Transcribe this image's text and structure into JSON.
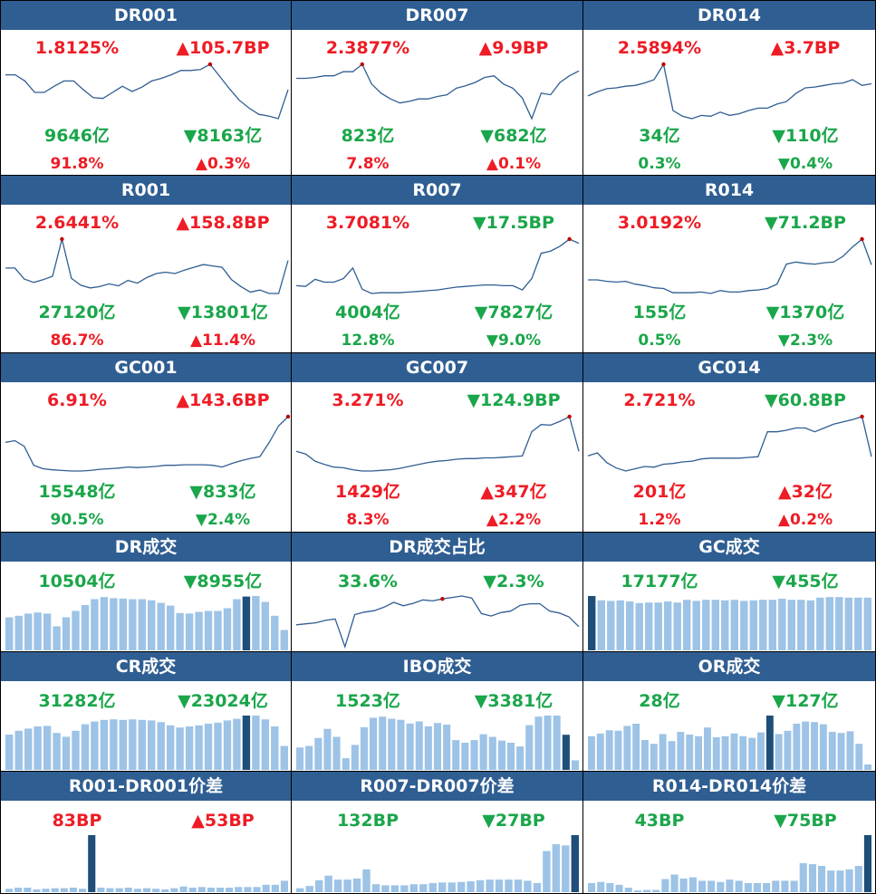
{
  "colors": {
    "header": "#2f5e92",
    "up": "#ee1c25",
    "down": "#1aa64a",
    "line": "#2f5e92",
    "bar": "#9dc3e6",
    "bar_highlight": "#1f4e79",
    "marker": "#c00000"
  },
  "panels": [
    {
      "title": "DR001",
      "type": "rate",
      "rate": {
        "text": "1.8125%",
        "dir": "up"
      },
      "change": {
        "text": "▲105.7BP",
        "dir": "up"
      },
      "volume": {
        "text": "9646亿",
        "dir": "down"
      },
      "volume_change": {
        "text": "▼8163亿",
        "dir": "down"
      },
      "share": {
        "text": "91.8%",
        "dir": "up"
      },
      "share_change": {
        "text": "▲0.3%",
        "dir": "up"
      },
      "chart_data": {
        "type": "line",
        "values": [
          0.88,
          0.88,
          0.81,
          0.68,
          0.68,
          0.75,
          0.81,
          0.81,
          0.71,
          0.62,
          0.61,
          0.68,
          0.75,
          0.69,
          0.74,
          0.81,
          0.84,
          0.88,
          0.93,
          0.93,
          0.94,
          1.0,
          0.86,
          0.72,
          0.59,
          0.5,
          0.43,
          0.41,
          0.38,
          0.71
        ],
        "marker_index": 21
      }
    },
    {
      "title": "DR007",
      "type": "rate",
      "rate": {
        "text": "2.3877%",
        "dir": "up"
      },
      "change": {
        "text": "▲9.9BP",
        "dir": "up"
      },
      "volume": {
        "text": "823亿",
        "dir": "down"
      },
      "volume_change": {
        "text": "▼682亿",
        "dir": "down"
      },
      "share": {
        "text": "7.8%",
        "dir": "up"
      },
      "share_change": {
        "text": "▲0.1%",
        "dir": "up"
      },
      "chart_data": {
        "type": "line",
        "values": [
          0.63,
          0.63,
          0.64,
          0.66,
          0.66,
          0.71,
          0.71,
          0.8,
          0.56,
          0.45,
          0.38,
          0.33,
          0.35,
          0.38,
          0.38,
          0.41,
          0.43,
          0.51,
          0.54,
          0.58,
          0.64,
          0.66,
          0.56,
          0.51,
          0.39,
          0.14,
          0.45,
          0.43,
          0.58,
          0.66,
          0.72
        ],
        "marker_index": 7
      }
    },
    {
      "title": "DR014",
      "type": "rate",
      "rate": {
        "text": "2.5894%",
        "dir": "up"
      },
      "change": {
        "text": "▲3.7BP",
        "dir": "up"
      },
      "volume": {
        "text": "34亿",
        "dir": "down"
      },
      "volume_change": {
        "text": "▼110亿",
        "dir": "down"
      },
      "share": {
        "text": "0.3%",
        "dir": "down"
      },
      "share_change": {
        "text": "▼0.4%",
        "dir": "down"
      },
      "chart_data": {
        "type": "line",
        "values": [
          2.2,
          2.25,
          2.29,
          2.3,
          2.32,
          2.33,
          2.36,
          2.4,
          2.59,
          2.02,
          1.95,
          1.92,
          1.96,
          1.95,
          2.0,
          1.96,
          1.98,
          2.02,
          2.05,
          2.05,
          2.1,
          2.13,
          2.23,
          2.3,
          2.31,
          2.33,
          2.35,
          2.36,
          2.4,
          2.33,
          2.35
        ],
        "marker_index": 8
      }
    },
    {
      "title": "R001",
      "type": "rate",
      "rate": {
        "text": "2.6441%",
        "dir": "up"
      },
      "change": {
        "text": "▲158.8BP",
        "dir": "up"
      },
      "volume": {
        "text": "27120亿",
        "dir": "down"
      },
      "volume_change": {
        "text": "▼13801亿",
        "dir": "down"
      },
      "share": {
        "text": "86.7%",
        "dir": "up"
      },
      "share_change": {
        "text": "▲11.4%",
        "dir": "up"
      },
      "chart_data": {
        "type": "line",
        "values": [
          0.58,
          0.58,
          0.42,
          0.37,
          0.41,
          0.46,
          1.0,
          0.43,
          0.33,
          0.29,
          0.31,
          0.35,
          0.32,
          0.4,
          0.36,
          0.44,
          0.5,
          0.52,
          0.5,
          0.55,
          0.59,
          0.63,
          0.61,
          0.59,
          0.41,
          0.31,
          0.23,
          0.26,
          0.21,
          0.21,
          0.69
        ],
        "marker_index": 6
      }
    },
    {
      "title": "R007",
      "type": "rate",
      "rate": {
        "text": "3.7081%",
        "dir": "up"
      },
      "change": {
        "text": "▼17.5BP",
        "dir": "down"
      },
      "volume": {
        "text": "4004亿",
        "dir": "down"
      },
      "volume_change": {
        "text": "▼7827亿",
        "dir": "down"
      },
      "share": {
        "text": "12.8%",
        "dir": "down"
      },
      "share_change": {
        "text": "▼9.0%",
        "dir": "down"
      },
      "chart_data": {
        "type": "line",
        "values": [
          0.46,
          0.45,
          0.55,
          0.51,
          0.51,
          0.56,
          0.71,
          0.41,
          0.35,
          0.36,
          0.36,
          0.36,
          0.37,
          0.38,
          0.39,
          0.4,
          0.42,
          0.44,
          0.45,
          0.46,
          0.47,
          0.47,
          0.46,
          0.46,
          0.4,
          0.56,
          0.92,
          0.95,
          1.02,
          1.12,
          1.06
        ],
        "marker_index": 29
      }
    },
    {
      "title": "R014",
      "type": "rate",
      "rate": {
        "text": "3.0192%",
        "dir": "up"
      },
      "change": {
        "text": "▼71.2BP",
        "dir": "down"
      },
      "volume": {
        "text": "155亿",
        "dir": "down"
      },
      "volume_change": {
        "text": "▼1370亿",
        "dir": "down"
      },
      "share": {
        "text": "0.5%",
        "dir": "down"
      },
      "share_change": {
        "text": "▼2.3%",
        "dir": "down"
      },
      "chart_data": {
        "type": "line",
        "values": [
          0.49,
          0.49,
          0.47,
          0.46,
          0.47,
          0.43,
          0.41,
          0.38,
          0.37,
          0.31,
          0.31,
          0.31,
          0.32,
          0.3,
          0.34,
          0.32,
          0.32,
          0.34,
          0.35,
          0.37,
          0.43,
          0.71,
          0.74,
          0.72,
          0.71,
          0.73,
          0.74,
          0.82,
          0.95,
          1.06,
          0.7
        ],
        "marker_index": 29
      }
    },
    {
      "title": "GC001",
      "type": "rate",
      "rate": {
        "text": "6.91%",
        "dir": "up"
      },
      "change": {
        "text": "▲143.6BP",
        "dir": "up"
      },
      "volume": {
        "text": "15548亿",
        "dir": "down"
      },
      "volume_change": {
        "text": "▼833亿",
        "dir": "down"
      },
      "share": {
        "text": "90.5%",
        "dir": "down"
      },
      "share_change": {
        "text": "▼2.4%",
        "dir": "down"
      },
      "chart_data": {
        "type": "line",
        "values": [
          0.55,
          0.58,
          0.48,
          0.15,
          0.09,
          0.07,
          0.06,
          0.05,
          0.05,
          0.06,
          0.08,
          0.09,
          0.1,
          0.12,
          0.11,
          0.12,
          0.13,
          0.15,
          0.15,
          0.16,
          0.16,
          0.16,
          0.15,
          0.12,
          0.18,
          0.23,
          0.27,
          0.3,
          0.55,
          0.84,
          1.0
        ],
        "marker_index": 30
      }
    },
    {
      "title": "GC007",
      "type": "rate",
      "rate": {
        "text": "3.271%",
        "dir": "up"
      },
      "change": {
        "text": "▼124.9BP",
        "dir": "down"
      },
      "volume": {
        "text": "1429亿",
        "dir": "up"
      },
      "volume_change": {
        "text": "▲347亿",
        "dir": "up"
      },
      "share": {
        "text": "8.3%",
        "dir": "up"
      },
      "share_change": {
        "text": "▲2.2%",
        "dir": "up"
      },
      "chart_data": {
        "type": "line",
        "values": [
          0.53,
          0.49,
          0.38,
          0.33,
          0.29,
          0.28,
          0.25,
          0.23,
          0.23,
          0.24,
          0.25,
          0.27,
          0.3,
          0.33,
          0.36,
          0.38,
          0.39,
          0.41,
          0.42,
          0.42,
          0.43,
          0.43,
          0.44,
          0.45,
          0.46,
          0.83,
          0.94,
          0.93,
          0.99,
          1.06,
          0.53
        ],
        "marker_index": 29
      }
    },
    {
      "title": "GC014",
      "type": "rate",
      "rate": {
        "text": "2.721%",
        "dir": "up"
      },
      "change": {
        "text": "▼60.8BP",
        "dir": "down"
      },
      "volume": {
        "text": "201亿",
        "dir": "up"
      },
      "volume_change": {
        "text": "▲32亿",
        "dir": "up"
      },
      "share": {
        "text": "1.2%",
        "dir": "up"
      },
      "share_change": {
        "text": "▲0.2%",
        "dir": "up"
      },
      "chart_data": {
        "type": "line",
        "values": [
          0.44,
          0.48,
          0.35,
          0.28,
          0.24,
          0.27,
          0.3,
          0.29,
          0.33,
          0.34,
          0.36,
          0.37,
          0.4,
          0.41,
          0.41,
          0.41,
          0.41,
          0.42,
          0.43,
          0.76,
          0.76,
          0.78,
          0.81,
          0.81,
          0.76,
          0.81,
          0.86,
          0.89,
          0.92,
          0.96,
          0.43
        ],
        "marker_index": 29
      }
    },
    {
      "title": "DR成交",
      "type": "bars",
      "value": {
        "text": "10504亿",
        "dir": "down"
      },
      "change": {
        "text": "▼8955亿",
        "dir": "down"
      },
      "chart_data": {
        "type": "bar",
        "values": [
          0.62,
          0.65,
          0.69,
          0.71,
          0.69,
          0.45,
          0.62,
          0.74,
          0.85,
          0.96,
          1.0,
          0.98,
          0.97,
          0.96,
          0.96,
          0.94,
          0.89,
          0.84,
          0.7,
          0.69,
          0.72,
          0.74,
          0.74,
          0.79,
          0.96,
          1.01,
          1.02,
          0.91,
          0.65,
          0.38
        ],
        "highlight_index": 25
      }
    },
    {
      "title": "DR成交占比",
      "type": "line",
      "value": {
        "text": "33.6%",
        "dir": "down"
      },
      "change": {
        "text": "▼2.3%",
        "dir": "down"
      },
      "chart_data": {
        "type": "line",
        "values": [
          0.5,
          0.52,
          0.54,
          0.59,
          0.62,
          0.05,
          0.71,
          0.76,
          0.79,
          0.86,
          0.96,
          0.89,
          0.94,
          1.01,
          0.99,
          1.03,
          1.06,
          1.09,
          1.05,
          0.73,
          0.68,
          0.75,
          0.78,
          0.9,
          0.93,
          0.93,
          0.78,
          0.74,
          0.66,
          0.46
        ],
        "marker_index": 15
      }
    },
    {
      "title": "GC成交",
      "type": "bars",
      "value": {
        "text": "17177亿",
        "dir": "down"
      },
      "change": {
        "text": "▼455亿",
        "dir": "down"
      },
      "chart_data": {
        "type": "bar",
        "values": [
          1.0,
          0.92,
          0.91,
          0.92,
          0.9,
          0.87,
          0.88,
          0.88,
          0.9,
          0.88,
          0.93,
          0.91,
          0.93,
          0.93,
          0.92,
          0.93,
          0.91,
          0.92,
          0.93,
          0.93,
          0.95,
          0.93,
          0.93,
          0.92,
          0.97,
          0.98,
          0.98,
          0.97,
          0.97,
          0.97
        ],
        "highlight_index": 0
      }
    },
    {
      "title": "CR成交",
      "type": "bars",
      "value": {
        "text": "31282亿",
        "dir": "down"
      },
      "change": {
        "text": "▼23024亿",
        "dir": "down"
      },
      "chart_data": {
        "type": "bar",
        "values": [
          0.65,
          0.72,
          0.76,
          0.8,
          0.81,
          0.68,
          0.61,
          0.72,
          0.84,
          0.89,
          0.92,
          0.93,
          0.92,
          0.93,
          0.92,
          0.91,
          0.88,
          0.82,
          0.78,
          0.8,
          0.82,
          0.85,
          0.87,
          0.91,
          0.94,
          1.0,
          1.0,
          0.93,
          0.8,
          0.44
        ],
        "highlight_index": 25
      }
    },
    {
      "title": "IBO成交",
      "type": "bars",
      "value": {
        "text": "1523亿",
        "dir": "down"
      },
      "change": {
        "text": "▼3381亿",
        "dir": "down"
      },
      "chart_data": {
        "type": "bar",
        "values": [
          0.42,
          0.45,
          0.6,
          0.77,
          0.62,
          0.22,
          0.47,
          0.8,
          0.98,
          1.0,
          0.96,
          0.94,
          0.87,
          0.91,
          0.82,
          0.88,
          0.85,
          0.56,
          0.51,
          0.56,
          0.67,
          0.62,
          0.55,
          0.51,
          0.44,
          0.84,
          1.0,
          1.02,
          1.02,
          0.66,
          0.18
        ],
        "highlight_index": 29
      }
    },
    {
      "title": "OR成交",
      "type": "bars",
      "value": {
        "text": "28亿",
        "dir": "down"
      },
      "change": {
        "text": "▼127亿",
        "dir": "down"
      },
      "chart_data": {
        "type": "bar",
        "values": [
          0.62,
          0.67,
          0.73,
          0.72,
          0.81,
          0.85,
          0.55,
          0.48,
          0.66,
          0.53,
          0.7,
          0.65,
          0.62,
          0.78,
          0.6,
          0.62,
          0.67,
          0.62,
          0.59,
          0.69,
          1.0,
          0.66,
          0.72,
          0.85,
          0.89,
          0.88,
          0.84,
          0.7,
          0.68,
          0.71,
          0.48,
          0.1
        ],
        "highlight_index": 20
      }
    },
    {
      "title": "R001-DR001价差",
      "type": "bars",
      "value": {
        "text": "83BP",
        "dir": "up"
      },
      "change": {
        "text": "▲53BP",
        "dir": "up"
      },
      "chart_data": {
        "type": "bar",
        "values": [
          0.06,
          0.08,
          0.08,
          0.05,
          0.06,
          0.07,
          0.07,
          0.08,
          0.06,
          1.0,
          0.08,
          0.07,
          0.07,
          0.08,
          0.06,
          0.07,
          0.06,
          0.05,
          0.07,
          0.1,
          0.08,
          0.09,
          0.08,
          0.08,
          0.08,
          0.09,
          0.09,
          0.09,
          0.13,
          0.13,
          0.2
        ],
        "highlight_index": 9
      }
    },
    {
      "title": "R007-DR007价差",
      "type": "bars",
      "value": {
        "text": "132BP",
        "dir": "down"
      },
      "change": {
        "text": "▼27BP",
        "dir": "down"
      },
      "chart_data": {
        "type": "bar",
        "values": [
          0.07,
          0.11,
          0.21,
          0.29,
          0.22,
          0.22,
          0.24,
          0.4,
          0.14,
          0.12,
          0.12,
          0.12,
          0.14,
          0.14,
          0.16,
          0.17,
          0.17,
          0.18,
          0.19,
          0.21,
          0.22,
          0.22,
          0.22,
          0.22,
          0.2,
          0.16,
          0.72,
          0.84,
          0.82,
          1.0
        ],
        "highlight_index": 29
      }
    },
    {
      "title": "R014-DR014价差",
      "type": "bars",
      "value": {
        "text": "43BP",
        "dir": "down"
      },
      "change": {
        "text": "▼75BP",
        "dir": "down"
      },
      "chart_data": {
        "type": "bar",
        "values": [
          0.16,
          0.18,
          0.16,
          0.13,
          0.08,
          0.03,
          0.04,
          0.04,
          0.23,
          0.31,
          0.24,
          0.26,
          0.2,
          0.2,
          0.18,
          0.22,
          0.2,
          0.16,
          0.16,
          0.16,
          0.2,
          0.2,
          0.2,
          0.51,
          0.49,
          0.46,
          0.38,
          0.38,
          0.4,
          0.46,
          1.0
        ],
        "highlight_index": 30
      }
    }
  ]
}
